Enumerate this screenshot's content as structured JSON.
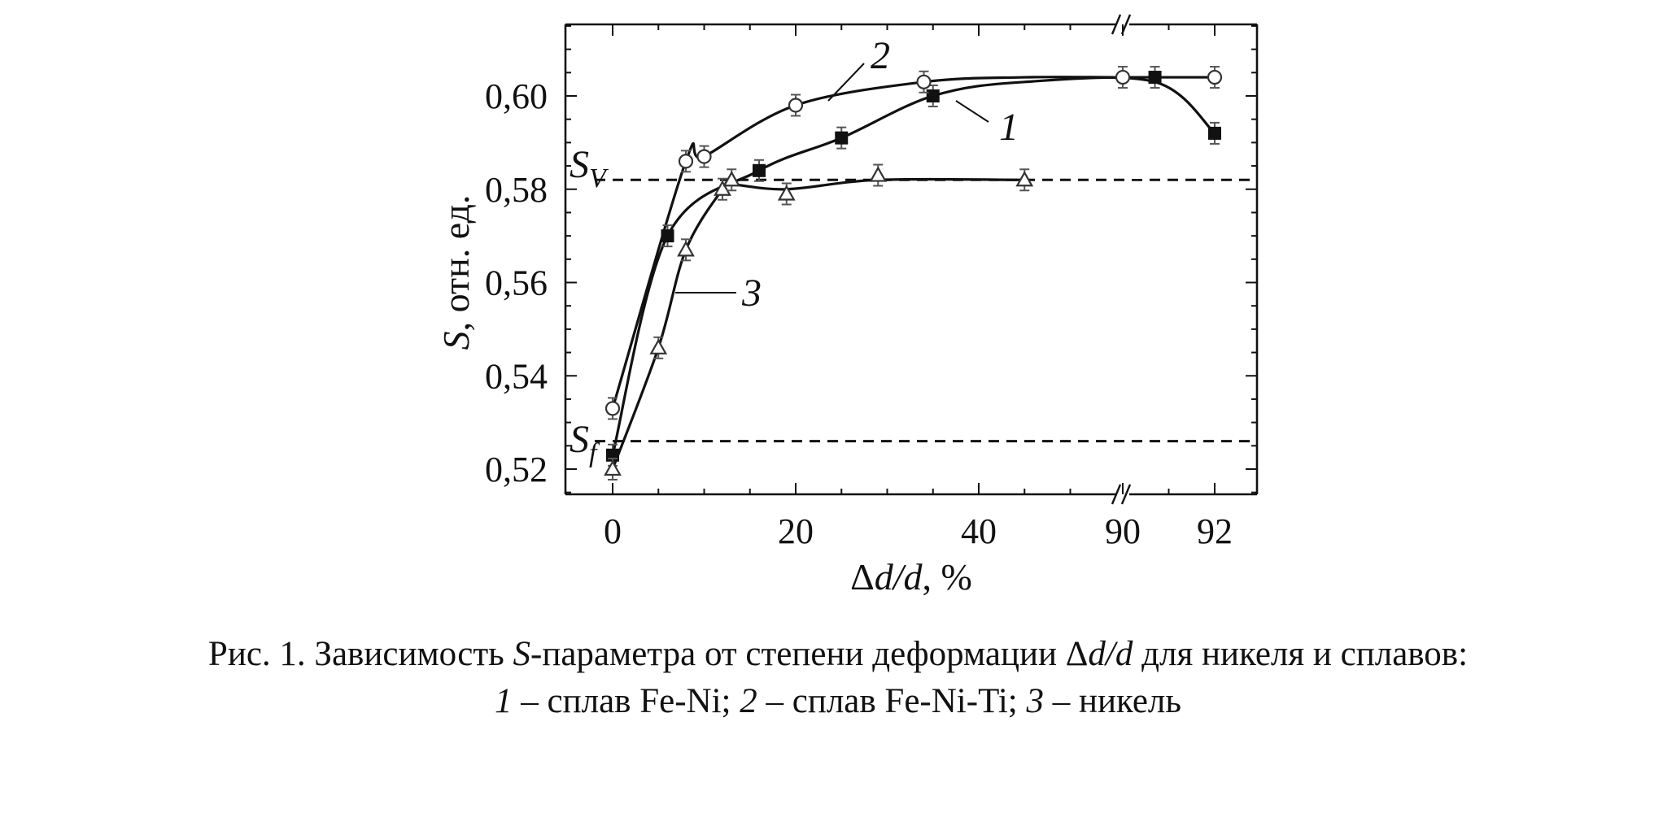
{
  "chart_data": {
    "type": "line",
    "xlabel": "Δd/d, %",
    "ylabel": "S, отн. ед.",
    "x_ticks": [
      "0",
      "20",
      "40",
      "90",
      "92"
    ],
    "y_ticks": [
      "0,52",
      "0,54",
      "0,56",
      "0,58",
      "0,60"
    ],
    "ylim": [
      0.515,
      0.615
    ],
    "x_axis_break": "between 40 and 90",
    "grid": false,
    "reference_lines": [
      {
        "label": "S_V",
        "label_main": "S",
        "label_sub": "V",
        "y": 0.582,
        "style": "dashed"
      },
      {
        "label": "S_f",
        "label_main": "S",
        "label_sub": "f",
        "y": 0.526,
        "style": "dashed"
      }
    ],
    "series": [
      {
        "name": "1",
        "marker": "filled-square",
        "x": [
          0,
          6,
          16,
          25,
          35,
          90.7,
          92
        ],
        "y": [
          0.523,
          0.57,
          0.584,
          0.591,
          0.6,
          0.604,
          0.592
        ]
      },
      {
        "name": "2",
        "marker": "open-circle",
        "x": [
          0,
          8,
          10,
          20,
          34,
          90.0,
          92
        ],
        "y": [
          0.533,
          0.586,
          0.587,
          0.598,
          0.603,
          0.604,
          0.604
        ]
      },
      {
        "name": "3",
        "marker": "open-triangle",
        "x": [
          0,
          5,
          8,
          12,
          13,
          19,
          29,
          45
        ],
        "y": [
          0.52,
          0.546,
          0.567,
          0.58,
          0.582,
          0.579,
          0.583,
          0.582
        ]
      }
    ]
  },
  "caption": {
    "line1_prefix": "Рис. 1. Зависимость ",
    "line1_s": "S",
    "line1_mid": "-параметра от степени деформации Δ",
    "line1_dd": "d/d",
    "line1_suffix": " для никеля и сплавов:",
    "item1_num": "1",
    "item1_text": " – сплав Fe-Ni; ",
    "item2_num": "2",
    "item2_text": " – сплав Fe-Ni-Ti; ",
    "item3_num": "3",
    "item3_text": " – никель"
  }
}
